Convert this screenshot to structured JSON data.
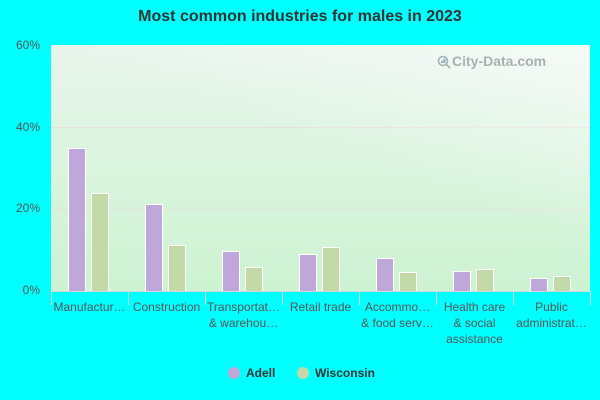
{
  "chart_data": {
    "type": "bar",
    "title": "Most common industries for males in 2023",
    "xlabel": "",
    "ylabel": "",
    "ylim": [
      0,
      60
    ],
    "yticks": [
      "0%",
      "20%",
      "40%",
      "60%"
    ],
    "grid": true,
    "legend_position": "bottom",
    "categories": [
      "Manufactur…",
      "Construction",
      "Transportat… & warehou…",
      "Retail trade",
      "Accommo… & food serv…",
      "Health care & social assistance",
      "Public administrat…"
    ],
    "series": [
      {
        "name": "Adell",
        "color": "#bfa8d9",
        "values": [
          34.9,
          21.2,
          9.7,
          9.0,
          8.0,
          4.9,
          3.2
        ]
      },
      {
        "name": "Wisconsin",
        "color": "#c3d9a8",
        "values": [
          23.9,
          11.2,
          5.9,
          10.7,
          4.6,
          5.4,
          3.7
        ]
      }
    ]
  },
  "labels": {
    "title": "Most common industries for males in 2023",
    "yticks": {
      "y0": "0%",
      "y20": "20%",
      "y40": "40%",
      "y60": "60%"
    },
    "x": [
      [
        "Manufactur…"
      ],
      [
        "Construction"
      ],
      [
        "Transportat…",
        "& warehou…"
      ],
      [
        "Retail trade"
      ],
      [
        "Accommo…",
        "& food serv…"
      ],
      [
        "Health care",
        "& social",
        "assistance"
      ],
      [
        "Public",
        "administrat…"
      ]
    ],
    "legend": {
      "adell": "Adell",
      "wisconsin": "Wisconsin"
    },
    "watermark": "City-Data.com"
  }
}
